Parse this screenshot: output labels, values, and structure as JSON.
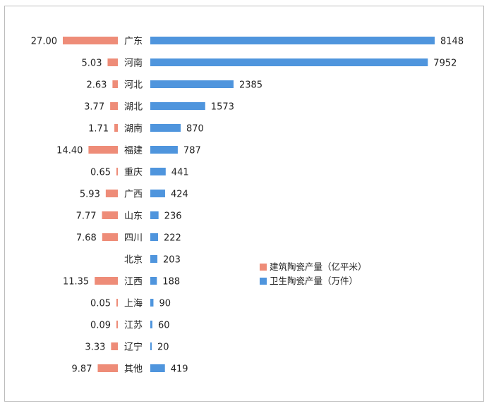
{
  "chart_data": {
    "type": "bar",
    "orientation": "horizontal-diverging",
    "categories": [
      "广东",
      "河南",
      "河北",
      "湖北",
      "湖南",
      "福建",
      "重庆",
      "广西",
      "山东",
      "四川",
      "北京",
      "江西",
      "上海",
      "江苏",
      "辽宁",
      "其他"
    ],
    "series": [
      {
        "name": "建筑陶瓷产量（亿平米）",
        "color": "#ee8c78",
        "values": [
          27.0,
          5.03,
          2.63,
          3.77,
          1.71,
          14.4,
          0.65,
          5.93,
          7.77,
          7.68,
          null,
          11.35,
          0.05,
          0.09,
          3.33,
          9.87
        ],
        "labels": [
          "27.00",
          "5.03",
          "2.63",
          "3.77",
          "1.71",
          "14.40",
          "0.65",
          "5.93",
          "7.77",
          "7.68",
          "",
          "11.35",
          "0.05",
          "0.09",
          "3.33",
          "9.87"
        ]
      },
      {
        "name": "卫生陶瓷产量（万件）",
        "color": "#4f95dd",
        "values": [
          8148,
          7952,
          2385,
          1573,
          870,
          787,
          441,
          424,
          236,
          222,
          203,
          188,
          90,
          60,
          20,
          419
        ],
        "labels": [
          "8148",
          "7952",
          "2385",
          "1573",
          "870",
          "787",
          "441",
          "424",
          "236",
          "222",
          "203",
          "188",
          "90",
          "60",
          "20",
          "419"
        ]
      }
    ],
    "legend_position": "right-middle",
    "grid": false
  }
}
